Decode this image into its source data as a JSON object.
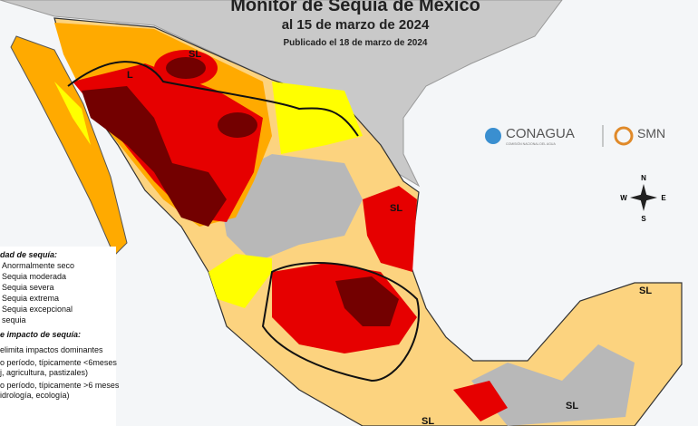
{
  "header": {
    "title": "Monitor de Sequía de México",
    "date": "al 15 de marzo de 2024",
    "published": "Publicado el 18 de marzo de 2024"
  },
  "logos": {
    "conagua": "CONAGUA",
    "conagua_sub": "COMISIÓN NACIONAL DEL AGUA",
    "smn": "SMN"
  },
  "compass": {
    "n": "N",
    "s": "S",
    "e": "E",
    "w": "W"
  },
  "map_labels": [
    "SL",
    "L",
    "SL",
    "SL",
    "SL",
    "SL"
  ],
  "legend": {
    "intensity_title": "dad de sequía:",
    "intensity_items": [
      "Anormalmente seco",
      "Sequia moderada",
      "Sequia severa",
      "Sequia extrema",
      "Sequia excepcional",
      "sequia"
    ],
    "impact_title": "e impacto de sequía:",
    "impact_items": [
      "elimita impactos dominantes",
      "o período, típicamente <6meses",
      "j, agricultura, pastizales)",
      "o período, típicamente >6 meses",
      "idrología, ecología)"
    ]
  }
}
